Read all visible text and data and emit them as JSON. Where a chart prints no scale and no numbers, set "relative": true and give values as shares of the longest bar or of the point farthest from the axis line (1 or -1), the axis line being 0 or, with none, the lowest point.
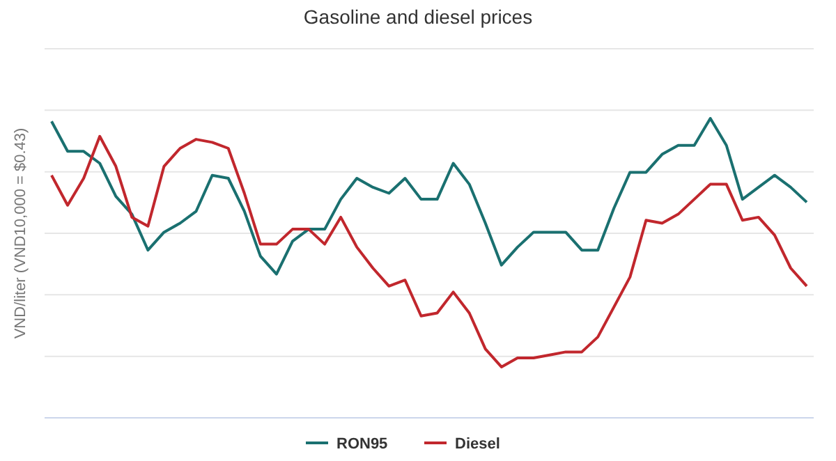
{
  "chart_data": {
    "type": "line",
    "title": "Gasoline and diesel prices",
    "ylabel": "VND/liter (VND10,000 = $0.43)",
    "relative": true,
    "grid": true,
    "legend": "bottom",
    "marker": "none",
    "line_style": "solid",
    "categories": [
      null,
      null,
      null,
      null,
      null,
      null,
      null,
      null,
      null,
      null,
      null,
      null,
      null,
      null,
      null,
      null,
      null,
      null,
      null,
      null,
      null,
      null,
      null,
      null,
      null,
      null,
      null,
      null,
      null,
      null,
      null,
      null,
      null,
      null,
      null,
      null,
      null,
      null,
      null,
      null,
      null,
      null,
      null,
      null,
      null,
      null,
      null,
      null
    ],
    "series": [
      {
        "name": "RON95",
        "color": "#1a7070",
        "values": [
          0.99,
          0.89,
          0.89,
          0.85,
          0.74,
          0.68,
          0.56,
          0.62,
          0.65,
          0.69,
          0.81,
          0.8,
          0.69,
          0.54,
          0.48,
          0.59,
          0.63,
          0.63,
          0.73,
          0.8,
          0.77,
          0.75,
          0.8,
          0.73,
          0.73,
          0.85,
          0.78,
          0.65,
          0.51,
          0.57,
          0.62,
          0.62,
          0.62,
          0.56,
          0.56,
          0.7,
          0.82,
          0.82,
          0.88,
          0.91,
          0.91,
          1,
          0.91,
          0.73,
          0.77,
          0.81,
          0.77,
          0.72
        ]
      },
      {
        "name": "Diesel",
        "color": "#c1272d",
        "values": [
          0.81,
          0.71,
          0.8,
          0.94,
          0.84,
          0.67,
          0.64,
          0.84,
          0.9,
          0.93,
          0.92,
          0.9,
          0.75,
          0.58,
          0.58,
          0.63,
          0.63,
          0.58,
          0.67,
          0.57,
          0.5,
          0.44,
          0.46,
          0.34,
          0.35,
          0.42,
          0.35,
          0.23,
          0.17,
          0.2,
          0.2,
          0.21,
          0.22,
          0.22,
          0.27,
          0.37,
          0.47,
          0.66,
          0.65,
          0.68,
          0.73,
          0.78,
          0.78,
          0.66,
          0.67,
          0.61,
          0.5,
          0.44
        ]
      }
    ]
  }
}
